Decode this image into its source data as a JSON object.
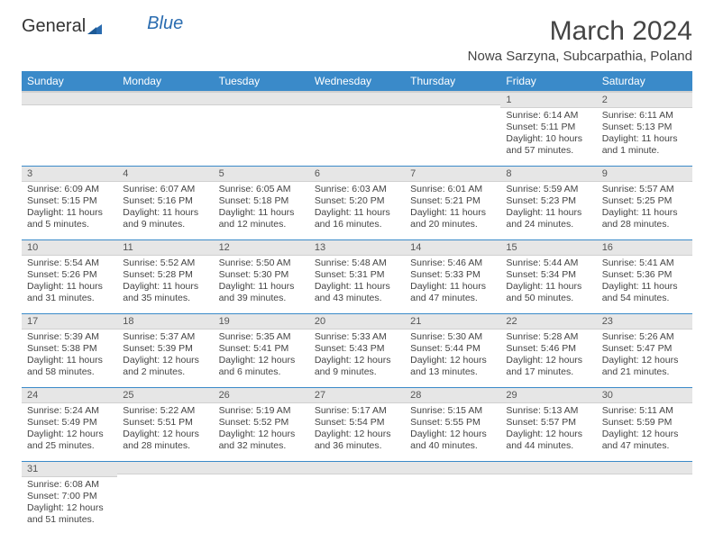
{
  "logo": {
    "text1": "General",
    "text2": "Blue"
  },
  "title": "March 2024",
  "location": "Nowa Sarzyna, Subcarpathia, Poland",
  "colors": {
    "header_bg": "#3a8ac9",
    "header_text": "#ffffff",
    "daynum_bg": "#e6e6e6",
    "row_border": "#3a8ac9",
    "text": "#444444",
    "logo_blue": "#2a6cb0"
  },
  "weekdays": [
    "Sunday",
    "Monday",
    "Tuesday",
    "Wednesday",
    "Thursday",
    "Friday",
    "Saturday"
  ],
  "weeks": [
    [
      {
        "n": "",
        "lines": []
      },
      {
        "n": "",
        "lines": []
      },
      {
        "n": "",
        "lines": []
      },
      {
        "n": "",
        "lines": []
      },
      {
        "n": "",
        "lines": []
      },
      {
        "n": "1",
        "lines": [
          "Sunrise: 6:14 AM",
          "Sunset: 5:11 PM",
          "Daylight: 10 hours",
          "and 57 minutes."
        ]
      },
      {
        "n": "2",
        "lines": [
          "Sunrise: 6:11 AM",
          "Sunset: 5:13 PM",
          "Daylight: 11 hours",
          "and 1 minute."
        ]
      }
    ],
    [
      {
        "n": "3",
        "lines": [
          "Sunrise: 6:09 AM",
          "Sunset: 5:15 PM",
          "Daylight: 11 hours",
          "and 5 minutes."
        ]
      },
      {
        "n": "4",
        "lines": [
          "Sunrise: 6:07 AM",
          "Sunset: 5:16 PM",
          "Daylight: 11 hours",
          "and 9 minutes."
        ]
      },
      {
        "n": "5",
        "lines": [
          "Sunrise: 6:05 AM",
          "Sunset: 5:18 PM",
          "Daylight: 11 hours",
          "and 12 minutes."
        ]
      },
      {
        "n": "6",
        "lines": [
          "Sunrise: 6:03 AM",
          "Sunset: 5:20 PM",
          "Daylight: 11 hours",
          "and 16 minutes."
        ]
      },
      {
        "n": "7",
        "lines": [
          "Sunrise: 6:01 AM",
          "Sunset: 5:21 PM",
          "Daylight: 11 hours",
          "and 20 minutes."
        ]
      },
      {
        "n": "8",
        "lines": [
          "Sunrise: 5:59 AM",
          "Sunset: 5:23 PM",
          "Daylight: 11 hours",
          "and 24 minutes."
        ]
      },
      {
        "n": "9",
        "lines": [
          "Sunrise: 5:57 AM",
          "Sunset: 5:25 PM",
          "Daylight: 11 hours",
          "and 28 minutes."
        ]
      }
    ],
    [
      {
        "n": "10",
        "lines": [
          "Sunrise: 5:54 AM",
          "Sunset: 5:26 PM",
          "Daylight: 11 hours",
          "and 31 minutes."
        ]
      },
      {
        "n": "11",
        "lines": [
          "Sunrise: 5:52 AM",
          "Sunset: 5:28 PM",
          "Daylight: 11 hours",
          "and 35 minutes."
        ]
      },
      {
        "n": "12",
        "lines": [
          "Sunrise: 5:50 AM",
          "Sunset: 5:30 PM",
          "Daylight: 11 hours",
          "and 39 minutes."
        ]
      },
      {
        "n": "13",
        "lines": [
          "Sunrise: 5:48 AM",
          "Sunset: 5:31 PM",
          "Daylight: 11 hours",
          "and 43 minutes."
        ]
      },
      {
        "n": "14",
        "lines": [
          "Sunrise: 5:46 AM",
          "Sunset: 5:33 PM",
          "Daylight: 11 hours",
          "and 47 minutes."
        ]
      },
      {
        "n": "15",
        "lines": [
          "Sunrise: 5:44 AM",
          "Sunset: 5:34 PM",
          "Daylight: 11 hours",
          "and 50 minutes."
        ]
      },
      {
        "n": "16",
        "lines": [
          "Sunrise: 5:41 AM",
          "Sunset: 5:36 PM",
          "Daylight: 11 hours",
          "and 54 minutes."
        ]
      }
    ],
    [
      {
        "n": "17",
        "lines": [
          "Sunrise: 5:39 AM",
          "Sunset: 5:38 PM",
          "Daylight: 11 hours",
          "and 58 minutes."
        ]
      },
      {
        "n": "18",
        "lines": [
          "Sunrise: 5:37 AM",
          "Sunset: 5:39 PM",
          "Daylight: 12 hours",
          "and 2 minutes."
        ]
      },
      {
        "n": "19",
        "lines": [
          "Sunrise: 5:35 AM",
          "Sunset: 5:41 PM",
          "Daylight: 12 hours",
          "and 6 minutes."
        ]
      },
      {
        "n": "20",
        "lines": [
          "Sunrise: 5:33 AM",
          "Sunset: 5:43 PM",
          "Daylight: 12 hours",
          "and 9 minutes."
        ]
      },
      {
        "n": "21",
        "lines": [
          "Sunrise: 5:30 AM",
          "Sunset: 5:44 PM",
          "Daylight: 12 hours",
          "and 13 minutes."
        ]
      },
      {
        "n": "22",
        "lines": [
          "Sunrise: 5:28 AM",
          "Sunset: 5:46 PM",
          "Daylight: 12 hours",
          "and 17 minutes."
        ]
      },
      {
        "n": "23",
        "lines": [
          "Sunrise: 5:26 AM",
          "Sunset: 5:47 PM",
          "Daylight: 12 hours",
          "and 21 minutes."
        ]
      }
    ],
    [
      {
        "n": "24",
        "lines": [
          "Sunrise: 5:24 AM",
          "Sunset: 5:49 PM",
          "Daylight: 12 hours",
          "and 25 minutes."
        ]
      },
      {
        "n": "25",
        "lines": [
          "Sunrise: 5:22 AM",
          "Sunset: 5:51 PM",
          "Daylight: 12 hours",
          "and 28 minutes."
        ]
      },
      {
        "n": "26",
        "lines": [
          "Sunrise: 5:19 AM",
          "Sunset: 5:52 PM",
          "Daylight: 12 hours",
          "and 32 minutes."
        ]
      },
      {
        "n": "27",
        "lines": [
          "Sunrise: 5:17 AM",
          "Sunset: 5:54 PM",
          "Daylight: 12 hours",
          "and 36 minutes."
        ]
      },
      {
        "n": "28",
        "lines": [
          "Sunrise: 5:15 AM",
          "Sunset: 5:55 PM",
          "Daylight: 12 hours",
          "and 40 minutes."
        ]
      },
      {
        "n": "29",
        "lines": [
          "Sunrise: 5:13 AM",
          "Sunset: 5:57 PM",
          "Daylight: 12 hours",
          "and 44 minutes."
        ]
      },
      {
        "n": "30",
        "lines": [
          "Sunrise: 5:11 AM",
          "Sunset: 5:59 PM",
          "Daylight: 12 hours",
          "and 47 minutes."
        ]
      }
    ],
    [
      {
        "n": "31",
        "lines": [
          "Sunrise: 6:08 AM",
          "Sunset: 7:00 PM",
          "Daylight: 12 hours",
          "and 51 minutes."
        ]
      },
      {
        "n": "",
        "lines": []
      },
      {
        "n": "",
        "lines": []
      },
      {
        "n": "",
        "lines": []
      },
      {
        "n": "",
        "lines": []
      },
      {
        "n": "",
        "lines": []
      },
      {
        "n": "",
        "lines": []
      }
    ]
  ]
}
